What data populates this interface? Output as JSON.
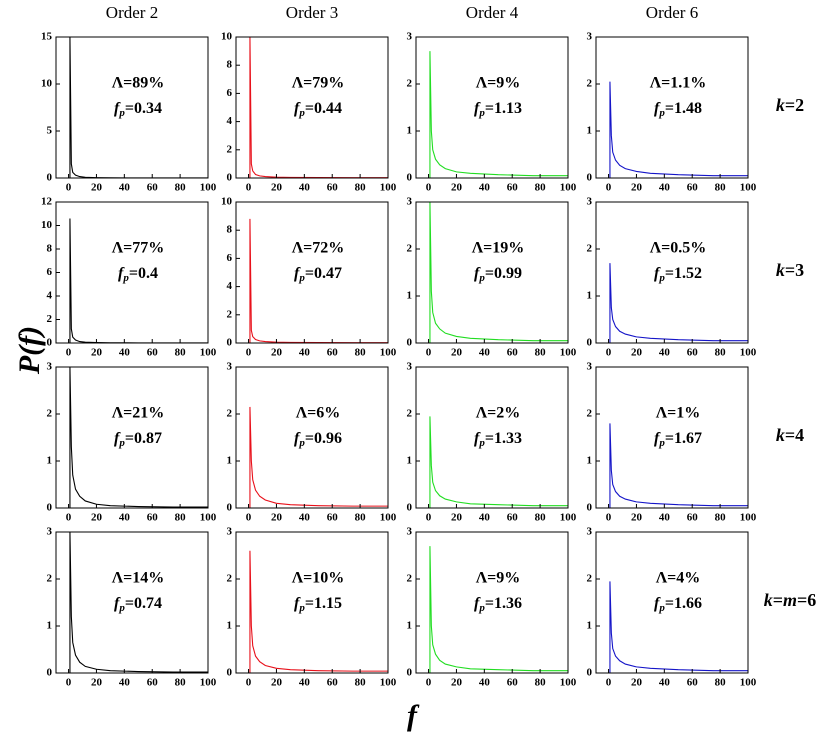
{
  "column_titles": [
    "Order 2",
    "Order 3",
    "Order 4",
    "Order 6"
  ],
  "row_labels": [
    "k=2",
    "k=3",
    "k=4",
    "k=m=6"
  ],
  "y_label": "P(f)",
  "x_label": "f",
  "chart_data": [
    {
      "type": "line",
      "color": "#000000",
      "x": [
        1,
        1,
        2,
        3,
        5,
        8,
        12,
        20,
        30,
        50,
        75,
        100
      ],
      "values": [
        0,
        15,
        1.5,
        0.6,
        0.3,
        0.15,
        0.08,
        0.04,
        0.02,
        0.01,
        0.01,
        0.01
      ],
      "xlim": [
        -9,
        100
      ],
      "ylim": [
        0,
        15
      ],
      "xticks": [
        0,
        20,
        40,
        60,
        80,
        100
      ],
      "yticks": [
        0,
        5,
        10,
        15
      ],
      "annotations": [
        "Λ=89%",
        "fp=0.34"
      ]
    },
    {
      "type": "line",
      "color": "#e8101a",
      "x": [
        1,
        1,
        2,
        3,
        5,
        8,
        12,
        20,
        30,
        50,
        75,
        100
      ],
      "values": [
        0,
        10,
        1.0,
        0.5,
        0.25,
        0.15,
        0.1,
        0.06,
        0.04,
        0.03,
        0.02,
        0.02
      ],
      "xlim": [
        -9,
        100
      ],
      "ylim": [
        0,
        10
      ],
      "xticks": [
        0,
        20,
        40,
        60,
        80,
        100
      ],
      "yticks": [
        0,
        2,
        4,
        6,
        8,
        10
      ],
      "annotations": [
        "Λ=79%",
        "fp=0.44"
      ]
    },
    {
      "type": "line",
      "color": "#22dd22",
      "x": [
        1,
        1,
        2,
        3,
        5,
        8,
        12,
        20,
        30,
        50,
        75,
        100
      ],
      "values": [
        0,
        2.7,
        1.0,
        0.6,
        0.4,
        0.28,
        0.2,
        0.13,
        0.1,
        0.07,
        0.05,
        0.05
      ],
      "xlim": [
        -9,
        100
      ],
      "ylim": [
        0,
        3
      ],
      "xticks": [
        0,
        20,
        40,
        60,
        80,
        100
      ],
      "yticks": [
        0,
        1,
        2,
        3
      ],
      "annotations": [
        "Λ=9%",
        "fp=1.13"
      ]
    },
    {
      "type": "line",
      "color": "#1515c8",
      "x": [
        1,
        1,
        2,
        3,
        5,
        8,
        12,
        20,
        30,
        50,
        75,
        100
      ],
      "values": [
        0,
        2.05,
        0.9,
        0.55,
        0.38,
        0.27,
        0.2,
        0.14,
        0.1,
        0.07,
        0.05,
        0.05
      ],
      "xlim": [
        -9,
        100
      ],
      "ylim": [
        0,
        3
      ],
      "xticks": [
        0,
        20,
        40,
        60,
        80,
        100
      ],
      "yticks": [
        0,
        1,
        2,
        3
      ],
      "annotations": [
        "Λ=1.1%",
        "fp=1.48"
      ]
    },
    {
      "type": "line",
      "color": "#000000",
      "x": [
        1,
        1,
        2,
        3,
        5,
        8,
        12,
        20,
        30,
        50,
        75,
        100
      ],
      "values": [
        0,
        10.6,
        1.2,
        0.5,
        0.25,
        0.12,
        0.07,
        0.04,
        0.02,
        0.01,
        0.01,
        0.01
      ],
      "xlim": [
        -9,
        100
      ],
      "ylim": [
        0,
        12
      ],
      "xticks": [
        0,
        20,
        40,
        60,
        80,
        100
      ],
      "yticks": [
        0,
        2,
        4,
        6,
        8,
        10,
        12
      ],
      "annotations": [
        "Λ=77%",
        "fp=0.4"
      ]
    },
    {
      "type": "line",
      "color": "#e8101a",
      "x": [
        1,
        1,
        2,
        3,
        5,
        8,
        12,
        20,
        30,
        50,
        75,
        100
      ],
      "values": [
        0,
        8.8,
        0.9,
        0.45,
        0.25,
        0.15,
        0.1,
        0.06,
        0.04,
        0.03,
        0.02,
        0.02
      ],
      "xlim": [
        -9,
        100
      ],
      "ylim": [
        0,
        10
      ],
      "xticks": [
        0,
        20,
        40,
        60,
        80,
        100
      ],
      "yticks": [
        0,
        2,
        4,
        6,
        8,
        10
      ],
      "annotations": [
        "Λ=72%",
        "fp=0.47"
      ]
    },
    {
      "type": "line",
      "color": "#22dd22",
      "x": [
        1,
        1,
        2,
        3,
        5,
        8,
        12,
        20,
        30,
        50,
        75,
        100
      ],
      "values": [
        0,
        3,
        1.1,
        0.65,
        0.42,
        0.3,
        0.21,
        0.14,
        0.1,
        0.07,
        0.05,
        0.05
      ],
      "xlim": [
        -9,
        100
      ],
      "ylim": [
        0,
        3
      ],
      "xticks": [
        0,
        20,
        40,
        60,
        80,
        100
      ],
      "yticks": [
        0,
        1,
        2,
        3
      ],
      "annotations": [
        "Λ=19%",
        "fp=0.99"
      ]
    },
    {
      "type": "line",
      "color": "#1515c8",
      "x": [
        1,
        1,
        2,
        3,
        5,
        8,
        12,
        20,
        30,
        50,
        75,
        100
      ],
      "values": [
        0,
        1.7,
        0.75,
        0.5,
        0.35,
        0.25,
        0.19,
        0.13,
        0.1,
        0.07,
        0.05,
        0.05
      ],
      "xlim": [
        -9,
        100
      ],
      "ylim": [
        0,
        3
      ],
      "xticks": [
        0,
        20,
        40,
        60,
        80,
        100
      ],
      "yticks": [
        0,
        1,
        2,
        3
      ],
      "annotations": [
        "Λ=0.5%",
        "fp=1.52"
      ]
    },
    {
      "type": "line",
      "color": "#000000",
      "x": [
        1,
        1,
        2,
        3,
        5,
        8,
        12,
        20,
        30,
        50,
        75,
        100
      ],
      "values": [
        0,
        3,
        1.3,
        0.7,
        0.4,
        0.25,
        0.15,
        0.08,
        0.05,
        0.03,
        0.02,
        0.02
      ],
      "xlim": [
        -9,
        100
      ],
      "ylim": [
        0,
        3
      ],
      "xticks": [
        0,
        20,
        40,
        60,
        80,
        100
      ],
      "yticks": [
        0,
        1,
        2,
        3
      ],
      "annotations": [
        "Λ=21%",
        "fp=0.87"
      ]
    },
    {
      "type": "line",
      "color": "#e8101a",
      "x": [
        1,
        1,
        2,
        3,
        5,
        8,
        12,
        20,
        30,
        50,
        75,
        100
      ],
      "values": [
        0,
        2.15,
        1.0,
        0.6,
        0.38,
        0.25,
        0.17,
        0.1,
        0.07,
        0.05,
        0.04,
        0.04
      ],
      "xlim": [
        -9,
        100
      ],
      "ylim": [
        0,
        3
      ],
      "xticks": [
        0,
        20,
        40,
        60,
        80,
        100
      ],
      "yticks": [
        0,
        1,
        2,
        3
      ],
      "annotations": [
        "Λ=6%",
        "fp=0.96"
      ]
    },
    {
      "type": "line",
      "color": "#22dd22",
      "x": [
        1,
        1,
        2,
        3,
        5,
        8,
        12,
        20,
        30,
        50,
        75,
        100
      ],
      "values": [
        0,
        1.95,
        0.9,
        0.55,
        0.37,
        0.26,
        0.19,
        0.13,
        0.09,
        0.07,
        0.05,
        0.05
      ],
      "xlim": [
        -9,
        100
      ],
      "ylim": [
        0,
        3
      ],
      "xticks": [
        0,
        20,
        40,
        60,
        80,
        100
      ],
      "yticks": [
        0,
        1,
        2,
        3
      ],
      "annotations": [
        "Λ=2%",
        "fp=1.33"
      ]
    },
    {
      "type": "line",
      "color": "#1515c8",
      "x": [
        1,
        1,
        2,
        3,
        5,
        8,
        12,
        20,
        30,
        50,
        75,
        100
      ],
      "values": [
        0,
        1.8,
        0.8,
        0.5,
        0.35,
        0.25,
        0.19,
        0.13,
        0.1,
        0.07,
        0.05,
        0.05
      ],
      "xlim": [
        -9,
        100
      ],
      "ylim": [
        0,
        3
      ],
      "xticks": [
        0,
        20,
        40,
        60,
        80,
        100
      ],
      "yticks": [
        0,
        1,
        2,
        3
      ],
      "annotations": [
        "Λ=1%",
        "fp=1.67"
      ]
    },
    {
      "type": "line",
      "color": "#000000",
      "x": [
        1,
        1,
        2,
        3,
        5,
        8,
        12,
        20,
        30,
        50,
        75,
        100
      ],
      "values": [
        0,
        3,
        1.2,
        0.65,
        0.38,
        0.23,
        0.14,
        0.08,
        0.05,
        0.03,
        0.02,
        0.02
      ],
      "xlim": [
        -9,
        100
      ],
      "ylim": [
        0,
        3
      ],
      "xticks": [
        0,
        20,
        40,
        60,
        80,
        100
      ],
      "yticks": [
        0,
        1,
        2,
        3
      ],
      "annotations": [
        "Λ=14%",
        "fp=0.74"
      ]
    },
    {
      "type": "line",
      "color": "#e8101a",
      "x": [
        1,
        1,
        2,
        3,
        5,
        8,
        12,
        20,
        30,
        50,
        75,
        100
      ],
      "values": [
        0,
        2.6,
        1.0,
        0.58,
        0.36,
        0.24,
        0.16,
        0.1,
        0.07,
        0.05,
        0.04,
        0.04
      ],
      "xlim": [
        -9,
        100
      ],
      "ylim": [
        0,
        3
      ],
      "xticks": [
        0,
        20,
        40,
        60,
        80,
        100
      ],
      "yticks": [
        0,
        1,
        2,
        3
      ],
      "annotations": [
        "Λ=10%",
        "fp=1.15"
      ]
    },
    {
      "type": "line",
      "color": "#22dd22",
      "x": [
        1,
        1,
        2,
        3,
        5,
        8,
        12,
        20,
        30,
        50,
        75,
        100
      ],
      "values": [
        0,
        2.7,
        1.0,
        0.6,
        0.4,
        0.27,
        0.19,
        0.13,
        0.09,
        0.07,
        0.05,
        0.05
      ],
      "xlim": [
        -9,
        100
      ],
      "ylim": [
        0,
        3
      ],
      "xticks": [
        0,
        20,
        40,
        60,
        80,
        100
      ],
      "yticks": [
        0,
        1,
        2,
        3
      ],
      "annotations": [
        "Λ=9%",
        "fp=1.36"
      ]
    },
    {
      "type": "line",
      "color": "#1515c8",
      "x": [
        1,
        1,
        2,
        3,
        5,
        8,
        12,
        20,
        30,
        50,
        75,
        100
      ],
      "values": [
        0,
        1.95,
        0.85,
        0.52,
        0.36,
        0.26,
        0.19,
        0.13,
        0.1,
        0.07,
        0.05,
        0.05
      ],
      "xlim": [
        -9,
        100
      ],
      "ylim": [
        0,
        3
      ],
      "xticks": [
        0,
        20,
        40,
        60,
        80,
        100
      ],
      "yticks": [
        0,
        1,
        2,
        3
      ],
      "annotations": [
        "Λ=4%",
        "fp=1.66"
      ]
    }
  ]
}
